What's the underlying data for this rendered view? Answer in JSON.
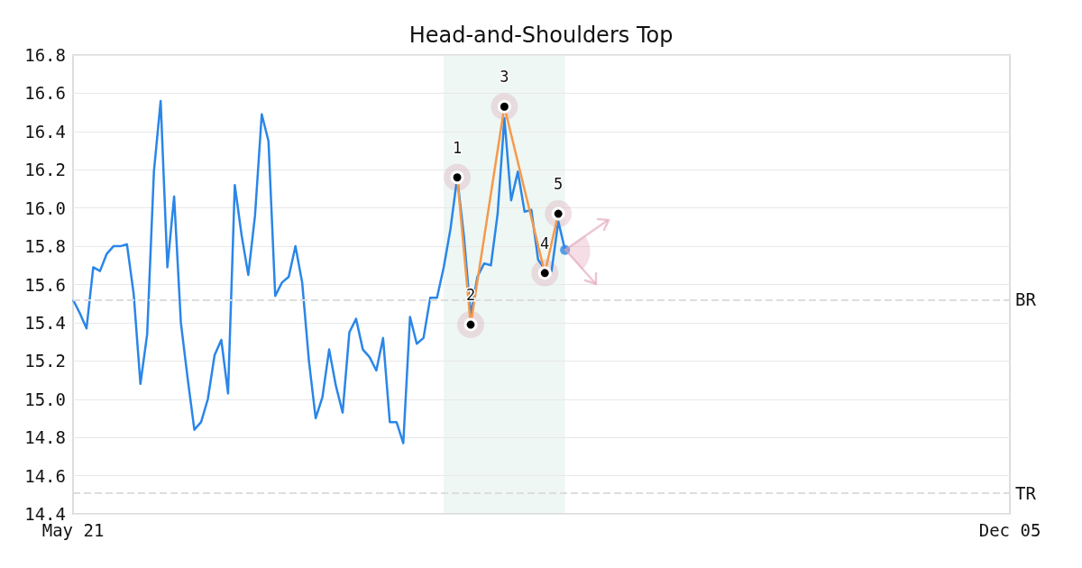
{
  "chart_data": {
    "type": "line",
    "title": "Head-and-Shoulders Top",
    "categories": [
      "May 21",
      null,
      null,
      null,
      null,
      null,
      null,
      null,
      null,
      null,
      null,
      null,
      null,
      null,
      null,
      null,
      null,
      null,
      null,
      null,
      null,
      null,
      null,
      null,
      null,
      null,
      null,
      null,
      null,
      null,
      null,
      null,
      null,
      null,
      null,
      null,
      null,
      null,
      null,
      null,
      null,
      null,
      null,
      null,
      null,
      null,
      null,
      null,
      null,
      null,
      null,
      null,
      null,
      null,
      null,
      null,
      null,
      null,
      null,
      null,
      null,
      null,
      null,
      null,
      null,
      null,
      null,
      null,
      null,
      null,
      null,
      null,
      null,
      null,
      null,
      null,
      null,
      null,
      null,
      null,
      null,
      null,
      null,
      null,
      null,
      null,
      null,
      null,
      null,
      null,
      null,
      null,
      null,
      null,
      null,
      null,
      null,
      null,
      null,
      null,
      null,
      null,
      null,
      null,
      null,
      null,
      null,
      null,
      null,
      null,
      null,
      null,
      null,
      null,
      null,
      null,
      null,
      null,
      null,
      null,
      null,
      null,
      null,
      null,
      null,
      null,
      null,
      null,
      null,
      null,
      null,
      null,
      null,
      null,
      null,
      null,
      null,
      null,
      null,
      "Dec 05"
    ],
    "series": [
      {
        "color": "#2a86e8",
        "marker": "none",
        "values": [
          15.52,
          15.45,
          15.37,
          15.69,
          15.67,
          15.76,
          15.8,
          15.8,
          15.81,
          15.55,
          15.08,
          15.34,
          16.19,
          16.56,
          15.69,
          16.06,
          15.4,
          15.11,
          14.84,
          14.88,
          15.0,
          15.23,
          15.31,
          15.03,
          16.12,
          15.86,
          15.65,
          15.96,
          16.49,
          16.35,
          15.54,
          15.61,
          15.64,
          15.8,
          15.61,
          15.2,
          14.9,
          15.01,
          15.26,
          15.07,
          14.93,
          15.35,
          15.42,
          15.26,
          15.22,
          15.15,
          15.32,
          14.88,
          14.88,
          14.77,
          15.43,
          15.29,
          15.32,
          15.53,
          15.53,
          15.69,
          15.89,
          16.16,
          15.85,
          15.44,
          15.64,
          15.71,
          15.7,
          15.97,
          16.47,
          16.04,
          16.19,
          15.98,
          15.99,
          15.73,
          15.68,
          15.67,
          15.93,
          15.78,
          null,
          null,
          null,
          null,
          null,
          null,
          null,
          null,
          null,
          null,
          null,
          null,
          null,
          null,
          null,
          null,
          null,
          null,
          null,
          null,
          null,
          null,
          null,
          null,
          null,
          null,
          null,
          null,
          null,
          null,
          null,
          null,
          null,
          null,
          null,
          null,
          null,
          null,
          null,
          null,
          null,
          null,
          null,
          null,
          null,
          null,
          null,
          null,
          null,
          null,
          null,
          null,
          null,
          null,
          null,
          null,
          null,
          null,
          null,
          null,
          null,
          null,
          null,
          null,
          null,
          null
        ]
      },
      {
        "color": "#f5994a",
        "marker": "circle",
        "values": [
          null,
          null,
          null,
          null,
          null,
          null,
          null,
          null,
          null,
          null,
          null,
          null,
          null,
          null,
          null,
          null,
          null,
          null,
          null,
          null,
          null,
          null,
          null,
          null,
          null,
          null,
          null,
          null,
          null,
          null,
          null,
          null,
          null,
          null,
          null,
          null,
          null,
          null,
          null,
          null,
          null,
          null,
          null,
          null,
          null,
          null,
          null,
          null,
          null,
          null,
          null,
          null,
          null,
          null,
          null,
          null,
          null,
          16.16,
          null,
          15.39,
          null,
          null,
          null,
          null,
          16.53,
          null,
          null,
          null,
          null,
          null,
          15.66,
          null,
          15.97,
          null,
          null,
          null,
          null,
          null,
          null,
          null,
          null,
          null,
          null,
          null,
          null,
          null,
          null,
          null,
          null,
          null,
          null,
          null,
          null,
          null,
          null,
          null,
          null,
          null,
          null,
          null,
          null,
          null,
          null,
          null,
          null,
          null,
          null,
          null,
          null,
          null,
          null,
          null,
          null,
          null,
          null,
          null,
          null,
          null,
          null,
          null,
          null,
          null,
          null,
          null,
          null,
          null,
          null,
          null,
          null,
          null,
          null,
          null,
          null,
          null,
          null,
          null,
          null,
          null,
          null,
          null
        ]
      },
      {
        "type": "scatter",
        "color": "#2a86e8",
        "marker": "circle",
        "values": [
          null,
          null,
          null,
          null,
          null,
          null,
          null,
          null,
          null,
          null,
          null,
          null,
          null,
          null,
          null,
          null,
          null,
          null,
          null,
          null,
          null,
          null,
          null,
          null,
          null,
          null,
          null,
          null,
          null,
          null,
          null,
          null,
          null,
          null,
          null,
          null,
          null,
          null,
          null,
          null,
          null,
          null,
          null,
          null,
          null,
          null,
          null,
          null,
          null,
          null,
          null,
          null,
          null,
          null,
          null,
          null,
          null,
          null,
          null,
          null,
          null,
          null,
          null,
          null,
          null,
          null,
          null,
          null,
          null,
          null,
          null,
          null,
          null,
          15.78,
          null,
          null,
          null,
          null,
          null,
          null,
          null,
          null,
          null,
          null,
          null,
          null,
          null,
          null,
          null,
          null,
          null,
          null,
          null,
          null,
          null,
          null,
          null,
          null,
          null,
          null,
          null,
          null,
          null,
          null,
          null,
          null,
          null,
          null,
          null,
          null,
          null,
          null,
          null,
          null,
          null,
          null,
          null,
          null,
          null,
          null,
          null,
          null,
          null,
          null,
          null,
          null,
          null,
          null,
          null,
          null,
          null,
          null,
          null,
          null,
          null,
          null,
          null,
          null,
          null,
          null
        ]
      }
    ],
    "annotations": [
      "1",
      "2",
      "3",
      "4",
      "5"
    ],
    "ylim": [
      14.4,
      16.8
    ],
    "yticks": [
      {
        "value": 14.4,
        "label": "14.4"
      },
      14.6,
      14.8,
      {
        "value": 15,
        "label": "15.0"
      },
      15.2,
      15.4,
      15.6,
      15.8,
      {
        "value": 16,
        "label": "16.0"
      },
      16.2,
      16.4,
      16.6,
      16.8
    ],
    "ref_lines": [
      {
        "axis": "y",
        "value": 15.52,
        "label": "BR",
        "color": "#dddddd",
        "line_style": "dashed"
      },
      {
        "axis": "y",
        "value": 14.51,
        "label": "TR",
        "color": "#dddddd",
        "line_style": "dashed"
      }
    ],
    "grid": "y"
  }
}
